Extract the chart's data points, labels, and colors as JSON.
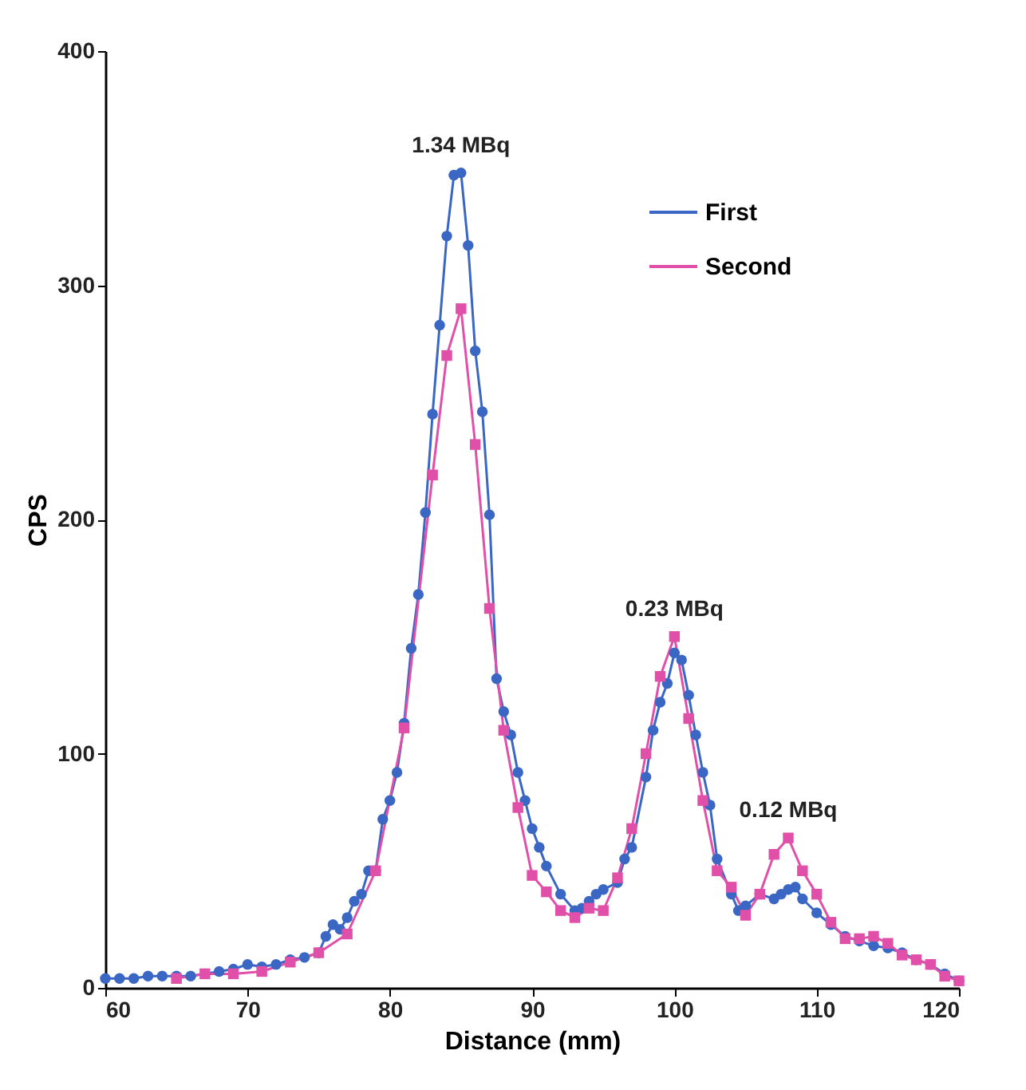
{
  "chart_data": {
    "type": "line",
    "xlabel": "Distance (mm)",
    "ylabel": "CPS",
    "xlim": [
      60,
      120
    ],
    "ylim": [
      0,
      400
    ],
    "xticks": [
      60,
      70,
      80,
      90,
      100,
      110,
      120
    ],
    "yticks": [
      0,
      100,
      200,
      300,
      400
    ],
    "grid": false,
    "legend": "top right",
    "line_style": "solid",
    "annotations": [
      {
        "text": "1.34 MBq",
        "x": 85,
        "y": 348
      },
      {
        "text": "0.23 MBq",
        "x": 100,
        "y": 150
      },
      {
        "text": "0.12 MBq",
        "x": 108,
        "y": 64
      }
    ],
    "series": [
      {
        "name": "First",
        "color": "#3a66c4",
        "marker": "circle",
        "x": [
          60,
          61,
          62,
          63,
          64,
          65,
          66,
          67,
          68,
          69,
          70,
          71,
          72,
          73,
          74,
          75,
          75.5,
          76,
          76.5,
          77,
          77.5,
          78,
          78.5,
          79,
          79.5,
          80,
          80.5,
          81,
          81.5,
          82,
          82.5,
          83,
          83.5,
          84,
          84.5,
          85,
          85.5,
          86,
          86.5,
          87,
          87.5,
          88,
          88.5,
          89,
          89.5,
          90,
          90.5,
          91,
          92,
          93,
          93.5,
          94,
          94.5,
          95,
          96,
          96.5,
          97,
          98,
          98.5,
          99,
          99.5,
          100,
          100.5,
          101,
          101.5,
          102,
          102.5,
          103,
          104,
          104.5,
          105,
          106,
          107,
          107.5,
          108,
          108.5,
          109,
          110,
          111,
          112,
          113,
          114,
          115,
          116,
          117,
          118,
          119,
          120
        ],
        "values": [
          4,
          4,
          4,
          5,
          5,
          5,
          5,
          6,
          7,
          8,
          10,
          9,
          10,
          12,
          13,
          15,
          22,
          27,
          25,
          30,
          37,
          40,
          50,
          50,
          72,
          80,
          92,
          113,
          145,
          168,
          203,
          245,
          283,
          321,
          347,
          348,
          317,
          272,
          246,
          202,
          132,
          118,
          108,
          92,
          80,
          68,
          60,
          52,
          40,
          33,
          34,
          37,
          40,
          42,
          45,
          55,
          60,
          90,
          110,
          122,
          130,
          143,
          140,
          125,
          108,
          92,
          78,
          55,
          40,
          33,
          35,
          40,
          38,
          40,
          42,
          43,
          38,
          32,
          27,
          22,
          20,
          18,
          17,
          15,
          12,
          10,
          6,
          3
        ]
      },
      {
        "name": "Second",
        "color": "#e050a8",
        "marker": "square",
        "x": [
          65,
          67,
          69,
          71,
          73,
          75,
          77,
          79,
          81,
          83,
          84,
          85,
          86,
          87,
          88,
          89,
          90,
          91,
          92,
          93,
          94,
          95,
          96,
          97,
          98,
          99,
          100,
          101,
          102,
          103,
          104,
          105,
          106,
          107,
          108,
          109,
          110,
          111,
          112,
          113,
          114,
          115,
          116,
          117,
          118,
          119,
          120
        ],
        "values": [
          4,
          6,
          6,
          7,
          11,
          15,
          23,
          50,
          111,
          219,
          270,
          290,
          232,
          162,
          110,
          77,
          48,
          41,
          33,
          30,
          34,
          33,
          47,
          68,
          100,
          133,
          150,
          115,
          80,
          50,
          43,
          31,
          40,
          57,
          64,
          50,
          40,
          28,
          21,
          21,
          22,
          19,
          14,
          12,
          10,
          5,
          3
        ]
      }
    ]
  }
}
